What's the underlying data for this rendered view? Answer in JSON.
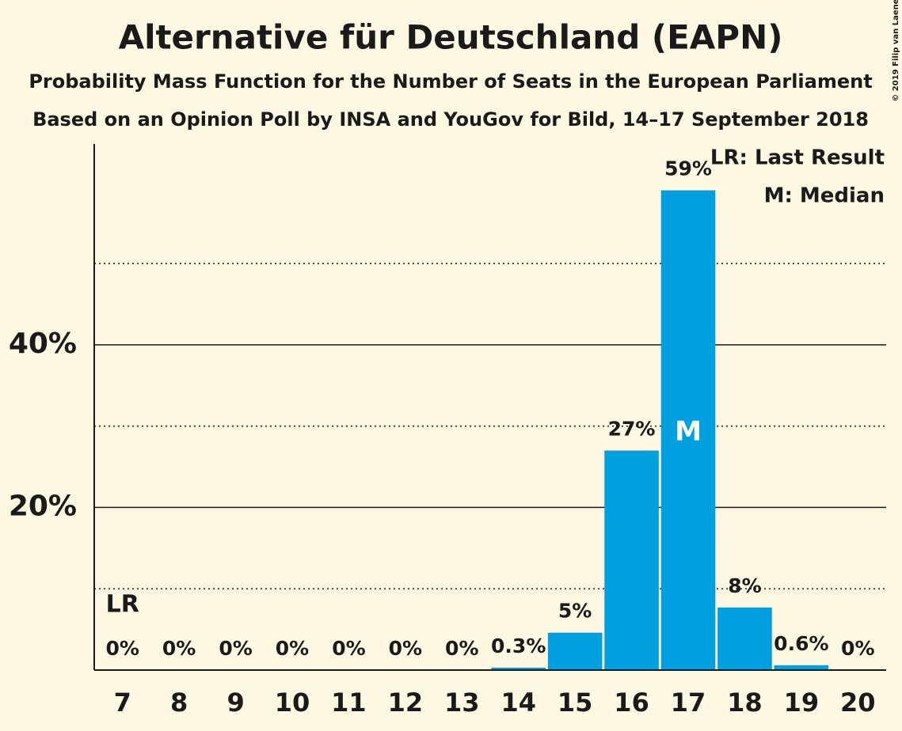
{
  "chart_data": {
    "type": "bar",
    "title": "Alternative für Deutschland (EAPN)",
    "subtitle": "Probability Mass Function for the Number of Seats in the European Parliament",
    "subtitle2": "Based on an Opinion Poll by INSA and YouGov for Bild, 14–17 September 2018",
    "copyright": "© 2019 Filip van Laenen",
    "categories": [
      "7",
      "8",
      "9",
      "10",
      "11",
      "12",
      "13",
      "14",
      "15",
      "16",
      "17",
      "18",
      "19",
      "20"
    ],
    "values": [
      0,
      0,
      0,
      0,
      0,
      0,
      0,
      0.3,
      4.6,
      27,
      59,
      7.7,
      0.6,
      0
    ],
    "value_labels": [
      "0%",
      "0%",
      "0%",
      "0%",
      "0%",
      "0%",
      "0%",
      "0.3%",
      "5%",
      "27%",
      "59%",
      "8%",
      "0.6%",
      "0%"
    ],
    "color": "#009fe0",
    "ylim": [
      0,
      64.7
    ],
    "yticks": [
      {
        "value": 20,
        "label": "20%"
      },
      {
        "value": 40,
        "label": "40%"
      }
    ],
    "minor_yticks": [
      10,
      30,
      50
    ],
    "grid": true,
    "last_result": "7",
    "last_result_marker": "LR",
    "median": "17",
    "median_marker": "M",
    "legend": [
      "LR: Last Result",
      "M: Median"
    ]
  }
}
